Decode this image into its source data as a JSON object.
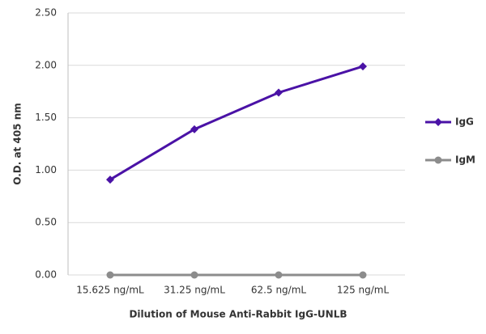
{
  "chart_data": {
    "type": "line",
    "x_label": "Dilution of Mouse Anti-Rabbit IgG-UNLB",
    "y_label": "O.D. at 405 nm",
    "categories": [
      "15.625 ng/mL",
      "31.25 ng/mL",
      "62.5 ng/mL",
      "125 ng/mL"
    ],
    "series": [
      {
        "name": "IgG",
        "color": "#4a12a6",
        "marker": "diamond",
        "values": [
          0.91,
          1.39,
          1.74,
          1.99
        ]
      },
      {
        "name": "IgM",
        "color": "#8c8c8c",
        "marker": "circle",
        "values": [
          0,
          0,
          0,
          0
        ]
      }
    ],
    "ylim": [
      0,
      2.5
    ],
    "yticks": [
      {
        "value": 0,
        "label": "0.00"
      },
      {
        "value": 0.5,
        "label": "0.50"
      },
      {
        "value": 1,
        "label": "1.00"
      },
      {
        "value": 1.5,
        "label": "1.50"
      },
      {
        "value": 2,
        "label": "2.00"
      },
      {
        "value": 2.5,
        "label": "2.50"
      }
    ],
    "grid": true,
    "legend": "right"
  }
}
